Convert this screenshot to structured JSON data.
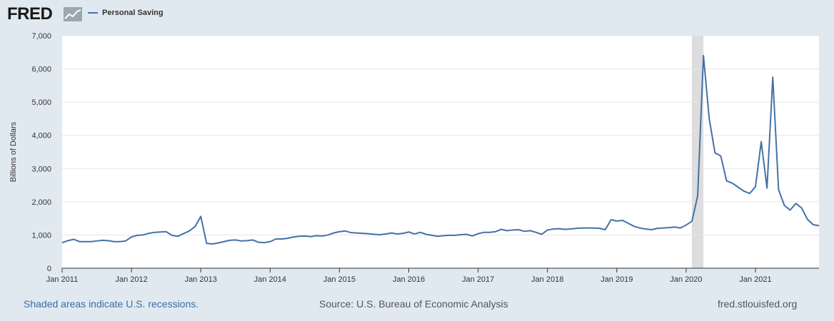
{
  "header": {
    "logo_text": "FRED",
    "legend_label": "Personal Saving"
  },
  "colors": {
    "series": "#4572a7",
    "recession": "#dddddd",
    "plot_bg": "#ffffff",
    "page_bg": "#e1e9f0",
    "grid": "#e6e6e6"
  },
  "chart_data": {
    "type": "line",
    "title": "",
    "xlabel": "",
    "ylabel": "Billions of Dollars",
    "ylim": [
      0,
      7000
    ],
    "xlim": [
      "2011-01",
      "2021-12"
    ],
    "grid": true,
    "legend": "top-left",
    "y_ticks": [
      "0",
      "1,000",
      "2,000",
      "3,000",
      "4,000",
      "5,000",
      "6,000",
      "7,000"
    ],
    "x_ticks": [
      "Jan 2011",
      "Jan 2012",
      "Jan 2013",
      "Jan 2014",
      "Jan 2015",
      "Jan 2016",
      "Jan 2017",
      "Jan 2018",
      "Jan 2019",
      "Jan 2020",
      "Jan 2021"
    ],
    "recessions": [
      {
        "start": "2020-02",
        "end": "2020-04"
      }
    ],
    "series": [
      {
        "name": "Personal Saving",
        "start": "2011-01",
        "frequency": "monthly",
        "values": [
          770,
          830,
          870,
          800,
          800,
          800,
          820,
          840,
          830,
          800,
          800,
          820,
          940,
          990,
          1000,
          1050,
          1080,
          1090,
          1100,
          990,
          960,
          1040,
          1120,
          1250,
          1560,
          750,
          730,
          760,
          800,
          840,
          850,
          820,
          830,
          850,
          780,
          770,
          800,
          880,
          880,
          900,
          940,
          960,
          970,
          950,
          980,
          970,
          1000,
          1060,
          1100,
          1120,
          1070,
          1060,
          1050,
          1040,
          1020,
          1010,
          1030,
          1060,
          1030,
          1050,
          1090,
          1030,
          1080,
          1020,
          990,
          960,
          980,
          990,
          990,
          1010,
          1020,
          970,
          1040,
          1080,
          1080,
          1100,
          1170,
          1130,
          1150,
          1160,
          1110,
          1130,
          1080,
          1020,
          1150,
          1180,
          1190,
          1170,
          1180,
          1200,
          1210,
          1210,
          1210,
          1200,
          1160,
          1460,
          1420,
          1440,
          1350,
          1260,
          1210,
          1180,
          1160,
          1200,
          1210,
          1220,
          1240,
          1210,
          1300,
          1410,
          2180,
          6400,
          4500,
          3470,
          3380,
          2630,
          2560,
          2440,
          2320,
          2250,
          2450,
          3810,
          2410,
          5750,
          2370,
          1890,
          1750,
          1950,
          1810,
          1470,
          1310,
          1280
        ]
      }
    ]
  },
  "footer": {
    "recessions_note": "Shaded areas indicate U.S. recessions.",
    "source": "Source: U.S. Bureau of Economic Analysis",
    "site": "fred.stlouisfed.org"
  }
}
